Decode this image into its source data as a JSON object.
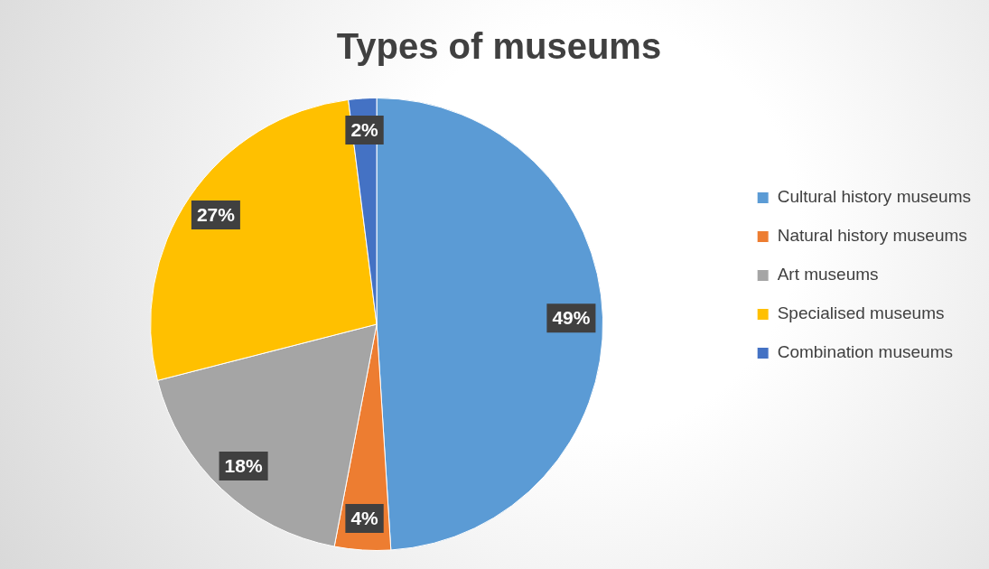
{
  "chart_data": {
    "type": "pie",
    "title": "Types of museums",
    "categories": [
      "Cultural history museums",
      "Natural history museums",
      "Art museums",
      "Specialised museums",
      "Combination museums"
    ],
    "values": [
      49,
      4,
      18,
      27,
      2
    ],
    "colors": [
      "#5b9bd5",
      "#ed7d31",
      "#a5a5a5",
      "#ffc000",
      "#4472c4"
    ],
    "value_labels": [
      "49%",
      "4%",
      "18%",
      "27%",
      "2%"
    ],
    "legend": "right"
  }
}
